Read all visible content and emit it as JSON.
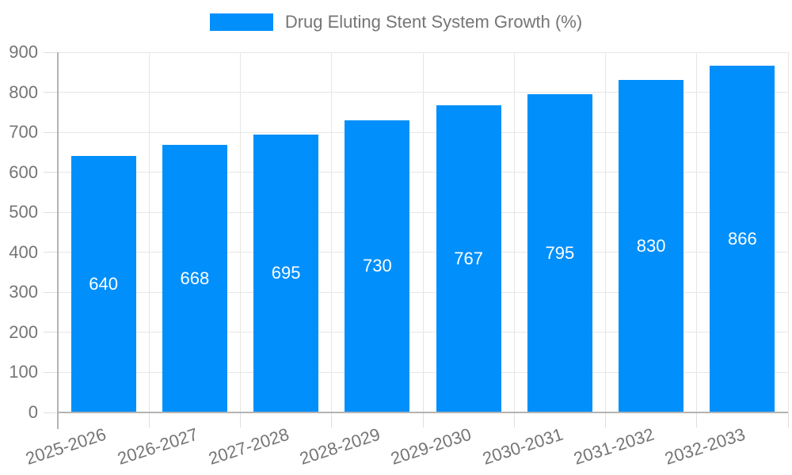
{
  "legend": {
    "label": "Drug Eluting Stent System Growth (%)"
  },
  "colors": {
    "bar": "#008FFB",
    "value_label": "#FFFFFF",
    "text": "#757575",
    "grid": "#E6E6E6",
    "tick": "#DEDEDE",
    "axis_line": "#B3B3B3",
    "background": "#FFFFFF"
  },
  "chart_data": {
    "type": "bar",
    "title": "",
    "xlabel": "",
    "ylabel": "",
    "categories": [
      "2025-2026",
      "2026-2027",
      "2027-2028",
      "2028-2029",
      "2029-2030",
      "2030-2031",
      "2031-2032",
      "2032-2033"
    ],
    "series": [
      {
        "name": "Drug Eluting Stent System Growth (%)",
        "values": [
          640,
          668,
          695,
          730,
          767,
          795,
          830,
          866
        ]
      }
    ],
    "ylim": [
      0,
      900
    ],
    "ytick_step": 100,
    "y_tick_labels": [
      "0",
      "100",
      "200",
      "300",
      "400",
      "500",
      "600",
      "700",
      "800",
      "900"
    ],
    "grid": true,
    "legend_position": "top",
    "value_label_position": "inside-center",
    "x_label_rotation_deg": -18
  }
}
